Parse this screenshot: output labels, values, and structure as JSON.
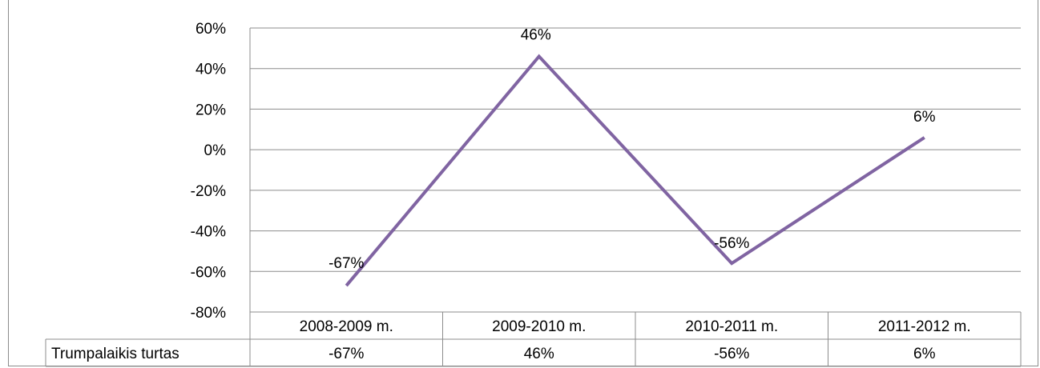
{
  "chart_data": {
    "type": "line",
    "categories": [
      "2008-2009 m.",
      "2009-2010 m.",
      "2010-2011 m.",
      "2011-2012 m."
    ],
    "series": [
      {
        "name": "Trumpalaikis turtas",
        "values": [
          -67,
          46,
          -56,
          6
        ],
        "color": "#8064a2"
      }
    ],
    "data_labels": [
      "-67%",
      "46%",
      "-56%",
      "6%"
    ],
    "table_values": [
      "-67%",
      "46%",
      "-56%",
      "6%"
    ],
    "ylim": [
      -80,
      60
    ],
    "y_ticks": [
      60,
      40,
      20,
      0,
      -20,
      -40,
      -60,
      -80
    ],
    "y_tick_labels": [
      "60%",
      "40%",
      "20%",
      "0%",
      "-20%",
      "-40%",
      "-60%",
      "-80%"
    ],
    "grid": true,
    "legend": "data-table-bottom",
    "title": "",
    "xlabel": "",
    "ylabel": ""
  }
}
